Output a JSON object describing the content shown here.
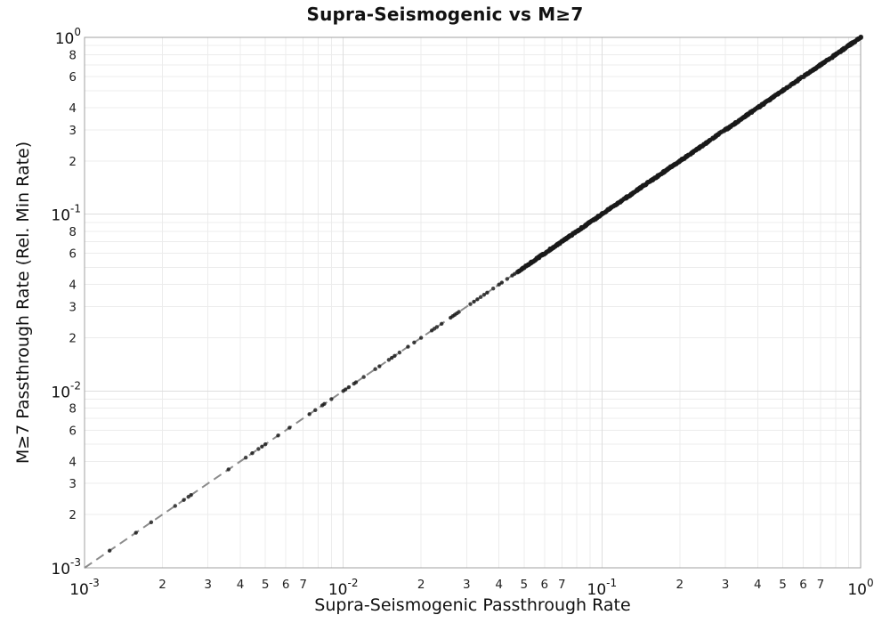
{
  "chart_data": {
    "type": "scatter",
    "title": "Supra-Seismogenic vs M≥7",
    "xlabel": "Supra-Seismogenic Passthrough Rate",
    "ylabel": "M≥7 Passthrough Rate (Rel. Min Rate)",
    "x_scale": "log",
    "y_scale": "log",
    "xlim": [
      0.001,
      1.0
    ],
    "ylim": [
      0.001,
      1.0
    ],
    "grid": "on",
    "legend": "none",
    "relation": "all points lie on y = x",
    "identity_line": {
      "relation": "y = x",
      "style": "dashed",
      "color": "#8c8c8c",
      "width": 2,
      "dash": "10 6",
      "from": 0.001,
      "to": 1.0
    },
    "sparse_x": [
      0.00125,
      0.00158,
      0.00181,
      0.00224,
      0.00242,
      0.00252,
      0.00258,
      0.0036,
      0.0042,
      0.00445,
      0.0047,
      0.00485,
      0.005,
      0.0056,
      0.0062,
      0.0074,
      0.0078,
      0.0083,
      0.00845,
      0.009,
      0.01,
      0.0102,
      0.0105,
      0.011,
      0.0112,
      0.012,
      0.0133,
      0.0138,
      0.015,
      0.0154,
      0.0158,
      0.0165,
      0.0178,
      0.0188,
      0.02,
      0.022,
      0.0225,
      0.023,
      0.024,
      0.026,
      0.0265,
      0.027,
      0.0275,
      0.028,
      0.031,
      0.032,
      0.033,
      0.034,
      0.035,
      0.036,
      0.038,
      0.04,
      0.041,
      0.043,
      0.045,
      0.046
    ],
    "dense_band": {
      "x_start": 0.047,
      "x_end": 1.0,
      "count": 430,
      "distribution": "log-uniform",
      "on_line": "y = x",
      "seed": 7
    },
    "point_style": {
      "color": "#191919",
      "opacity": 0.82,
      "radius": 2.2,
      "dense_radius": 2.7
    },
    "x_axis": {
      "major_ticks": [
        {
          "mantissa": "10",
          "exp": "-3",
          "value": 0.001
        },
        {
          "mantissa": "10",
          "exp": "-2",
          "value": 0.01
        },
        {
          "mantissa": "10",
          "exp": "-1",
          "value": 0.1
        },
        {
          "mantissa": "10",
          "exp": "0",
          "value": 1.0
        }
      ],
      "minor_labeled_subs": [
        2,
        3,
        4,
        5,
        6,
        7
      ],
      "minor_label_decades": [
        -3,
        -2,
        -1
      ],
      "grid_subs": [
        2,
        3,
        4,
        5,
        6,
        7,
        8,
        9
      ]
    },
    "y_axis": {
      "major_ticks": [
        {
          "mantissa": "10",
          "exp": "0",
          "value": 1.0
        },
        {
          "mantissa": "10",
          "exp": "-1",
          "value": 0.1
        },
        {
          "mantissa": "10",
          "exp": "-2",
          "value": 0.01
        },
        {
          "mantissa": "10",
          "exp": "-3",
          "value": 0.001
        }
      ],
      "minor_labeled_subs": [
        2,
        3,
        4,
        6,
        8
      ],
      "minor_label_decades": [
        -1,
        -2,
        -3
      ],
      "grid_subs": [
        2,
        3,
        4,
        5,
        6,
        7,
        8,
        9
      ]
    },
    "colors": {
      "background": "#ffffff",
      "grid_minor": "#ececec",
      "grid_major": "#dedede",
      "frame": "#a0a0a0",
      "major_tick_text": "#111111",
      "minor_tick_text": "#222222"
    }
  }
}
